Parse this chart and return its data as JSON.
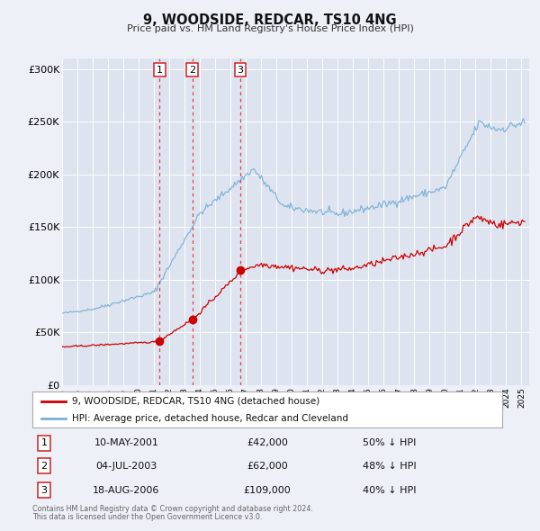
{
  "title": "9, WOODSIDE, REDCAR, TS10 4NG",
  "subtitle": "Price paid vs. HM Land Registry's House Price Index (HPI)",
  "ylim": [
    0,
    310000
  ],
  "xlim_start": 1995.0,
  "xlim_end": 2025.5,
  "yticks": [
    0,
    50000,
    100000,
    150000,
    200000,
    250000,
    300000
  ],
  "ytick_labels": [
    "£0",
    "£50K",
    "£100K",
    "£150K",
    "£200K",
    "£250K",
    "£300K"
  ],
  "xtick_years": [
    1995,
    1996,
    1997,
    1998,
    1999,
    2000,
    2001,
    2002,
    2003,
    2004,
    2005,
    2006,
    2007,
    2008,
    2009,
    2010,
    2011,
    2012,
    2013,
    2014,
    2015,
    2016,
    2017,
    2018,
    2019,
    2020,
    2021,
    2022,
    2023,
    2024,
    2025
  ],
  "fig_bg_color": "#eef0f8",
  "plot_bg_color": "#dde4f0",
  "grid_color": "#ffffff",
  "red_line_color": "#cc0000",
  "blue_line_color": "#7aafd4",
  "sale_vline_color": "#dd4444",
  "legend1_label": "9, WOODSIDE, REDCAR, TS10 4NG (detached house)",
  "legend2_label": "HPI: Average price, detached house, Redcar and Cleveland",
  "transactions": [
    {
      "num": 1,
      "date_label": "10-MAY-2001",
      "date_decimal": 2001.36,
      "price": 42000,
      "pct_label": "50% ↓ HPI"
    },
    {
      "num": 2,
      "date_label": "04-JUL-2003",
      "date_decimal": 2003.51,
      "price": 62000,
      "pct_label": "48% ↓ HPI"
    },
    {
      "num": 3,
      "date_label": "18-AUG-2006",
      "date_decimal": 2006.63,
      "price": 109000,
      "pct_label": "40% ↓ HPI"
    }
  ],
  "footer_line1": "Contains HM Land Registry data © Crown copyright and database right 2024.",
  "footer_line2": "This data is licensed under the Open Government Licence v3.0."
}
